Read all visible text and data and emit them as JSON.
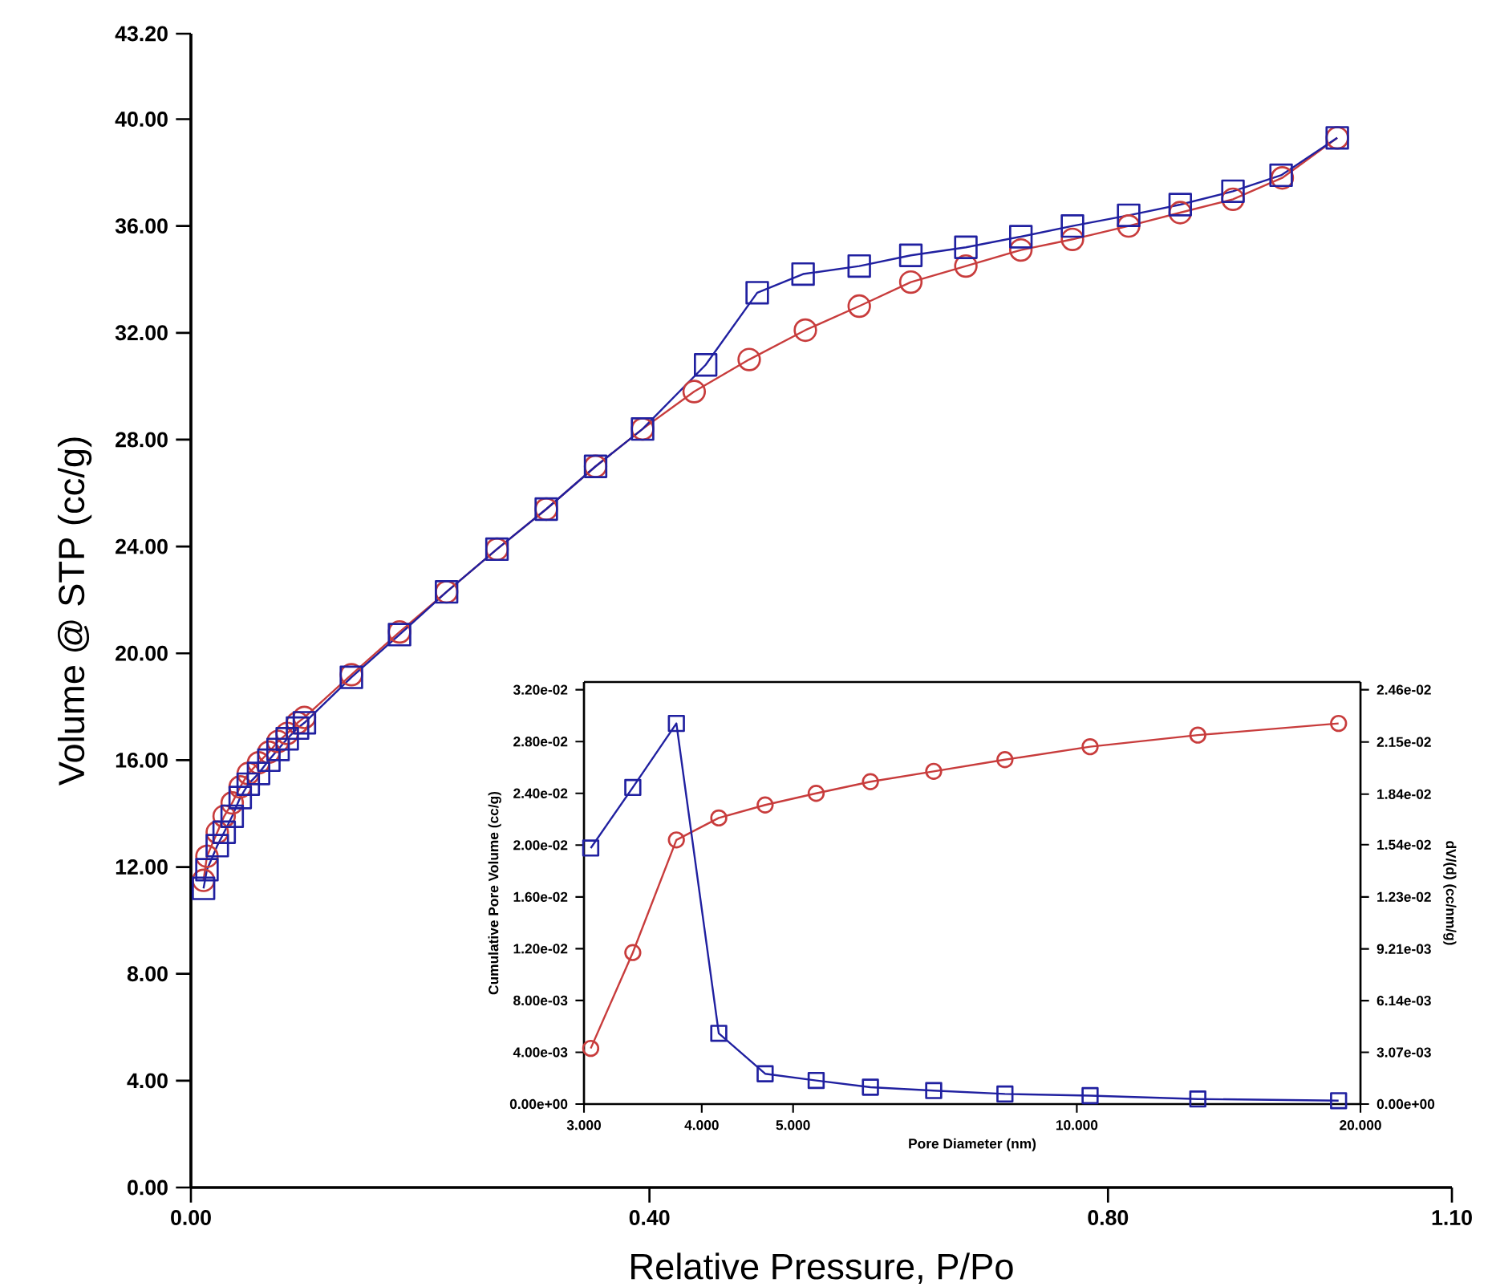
{
  "chart_data": [
    {
      "type": "line",
      "xlabel": "Relative Pressure, P/Po",
      "ylabel": "Volume @ STP (cc/g)",
      "xlim": [
        0,
        1.1
      ],
      "xticks": [
        {
          "value": 0,
          "label": "0.00"
        },
        {
          "value": 0.4,
          "label": "0.40"
        },
        {
          "value": 0.8,
          "label": "0.80"
        },
        {
          "value": 1.1,
          "label": "1.10"
        }
      ],
      "ylim": [
        0,
        43.2
      ],
      "yticks": [
        {
          "value": 0,
          "label": "0.00"
        },
        {
          "value": 4,
          "label": "4.00"
        },
        {
          "value": 8,
          "label": "8.00"
        },
        {
          "value": 12,
          "label": "12.00"
        },
        {
          "value": 16,
          "label": "16.00"
        },
        {
          "value": 20,
          "label": "20.00"
        },
        {
          "value": 24,
          "label": "24.00"
        },
        {
          "value": 28,
          "label": "28.00"
        },
        {
          "value": 32,
          "label": "32.00"
        },
        {
          "value": 36,
          "label": "36.00"
        },
        {
          "value": 40,
          "label": "40.00"
        },
        {
          "value": 43.2,
          "label": "43.20"
        }
      ],
      "series": [
        {
          "color": "#c83c3c",
          "marker": "circle",
          "x": [
            0.011,
            0.014,
            0.023,
            0.029,
            0.036,
            0.043,
            0.05,
            0.059,
            0.068,
            0.076,
            0.084,
            0.093,
            0.099,
            0.14,
            0.182,
            0.223,
            0.267,
            0.31,
            0.353,
            0.394,
            0.439,
            0.487,
            0.536,
            0.583,
            0.628,
            0.676,
            0.724,
            0.769,
            0.818,
            0.863,
            0.909,
            0.952,
            1.0
          ],
          "values": [
            11.5,
            12.4,
            13.3,
            13.9,
            14.4,
            15.0,
            15.5,
            15.9,
            16.3,
            16.7,
            17.0,
            17.4,
            17.6,
            19.2,
            20.8,
            22.3,
            23.9,
            25.4,
            27.0,
            28.4,
            29.8,
            31.0,
            32.1,
            33.0,
            33.9,
            34.5,
            35.1,
            35.5,
            36.0,
            36.5,
            37.0,
            37.8,
            39.3
          ]
        },
        {
          "color": "#2020a0",
          "marker": "square",
          "x": [
            0.011,
            0.014,
            0.023,
            0.029,
            0.036,
            0.043,
            0.05,
            0.059,
            0.068,
            0.076,
            0.084,
            0.093,
            0.099,
            0.14,
            0.182,
            0.223,
            0.267,
            0.31,
            0.353,
            0.394,
            0.449,
            0.494,
            0.534,
            0.583,
            0.628,
            0.676,
            0.724,
            0.769,
            0.818,
            0.863,
            0.909,
            0.951,
            1.0
          ],
          "values": [
            11.2,
            11.9,
            12.8,
            13.3,
            13.9,
            14.6,
            15.1,
            15.5,
            16.0,
            16.4,
            16.8,
            17.2,
            17.4,
            19.1,
            20.7,
            22.3,
            23.9,
            25.4,
            27.0,
            28.4,
            30.8,
            33.5,
            34.2,
            34.5,
            34.9,
            35.2,
            35.6,
            36.0,
            36.4,
            36.8,
            37.3,
            37.9,
            39.3
          ]
        }
      ]
    },
    {
      "type": "line",
      "log": "x",
      "xlabel": "Pore Diameter (nm)",
      "ylabel": "Cumulative Pore Volume (cc/g)",
      "y2label": "dV/(d) (cc/nm/g)",
      "xlim": [
        3,
        20
      ],
      "xticks": [
        {
          "value": 3,
          "label": "3.000"
        },
        {
          "value": 4,
          "label": "4.000"
        },
        {
          "value": 5,
          "label": "5.000"
        },
        {
          "value": 10,
          "label": "10.000"
        },
        {
          "value": 20,
          "label": "20.000"
        }
      ],
      "ylim": [
        0,
        0.0326
      ],
      "yticks": [
        {
          "value": 0,
          "label": "0.00e+00"
        },
        {
          "value": 0.004,
          "label": "4.00e-03"
        },
        {
          "value": 0.008,
          "label": "8.00e-03"
        },
        {
          "value": 0.012,
          "label": "1.20e-02"
        },
        {
          "value": 0.016,
          "label": "1.60e-02"
        },
        {
          "value": 0.02,
          "label": "2.00e-02"
        },
        {
          "value": 0.024,
          "label": "2.40e-02"
        },
        {
          "value": 0.028,
          "label": "2.80e-02"
        },
        {
          "value": 0.032,
          "label": "3.20e-02"
        }
      ],
      "y2lim": [
        0,
        0.02506
      ],
      "y2ticks": [
        {
          "value": 0,
          "label": "0.00e+00"
        },
        {
          "value": 0.00307,
          "label": "3.07e-03"
        },
        {
          "value": 0.00614,
          "label": "6.14e-03"
        },
        {
          "value": 0.00921,
          "label": "9.21e-03"
        },
        {
          "value": 0.0123,
          "label": "1.23e-02"
        },
        {
          "value": 0.0154,
          "label": "1.54e-02"
        },
        {
          "value": 0.0184,
          "label": "1.84e-02"
        },
        {
          "value": 0.0215,
          "label": "2.15e-02"
        },
        {
          "value": 0.0246,
          "label": "2.46e-02"
        }
      ],
      "series": [
        {
          "color": "#c83c3c",
          "marker": "circle",
          "x": [
            3.05,
            3.38,
            3.76,
            4.17,
            4.67,
            5.29,
            6.04,
            7.05,
            8.39,
            10.33,
            13.44,
            18.96
          ],
          "values": [
            0.0043,
            0.0117,
            0.0204,
            0.0221,
            0.0231,
            0.024,
            0.0249,
            0.0257,
            0.0266,
            0.0276,
            0.0285,
            0.0294
          ]
        },
        {
          "color": "#2020a0",
          "marker": "square",
          "axis": "y2",
          "x": [
            3.05,
            3.38,
            3.76,
            4.17,
            4.67,
            5.29,
            6.04,
            7.05,
            8.39,
            10.33,
            13.44,
            18.96
          ],
          "values": [
            0.0152,
            0.0188,
            0.0226,
            0.0042,
            0.0018,
            0.0014,
            0.001,
            0.0008,
            0.0006,
            0.0005,
            0.0003,
            0.0002
          ]
        }
      ]
    }
  ]
}
